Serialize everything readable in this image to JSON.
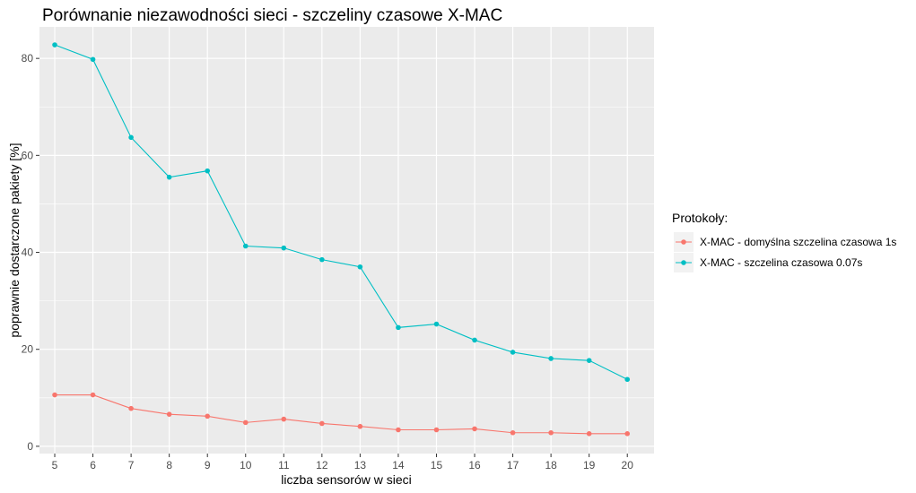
{
  "chart_data": {
    "type": "line",
    "title": "Porównanie niezawodności sieci - szczeliny czasowe X-MAC",
    "xlabel": "liczba sensorów w sieci",
    "ylabel": "poprawnie dostarczone pakiety [%]",
    "x": [
      5,
      6,
      7,
      8,
      9,
      10,
      11,
      12,
      13,
      14,
      15,
      16,
      17,
      18,
      19,
      20
    ],
    "xlim": [
      4.6,
      20.7
    ],
    "ylim": [
      -1.5,
      86.5
    ],
    "yticks": [
      0,
      20,
      40,
      60,
      80
    ],
    "grid": true,
    "legend": {
      "title": "Protokoły:",
      "position": "right"
    },
    "series": [
      {
        "name": "X-MAC - domyślna szczelina czasowa 1s",
        "color": "#F8766D",
        "values": [
          10.6,
          10.6,
          7.8,
          6.6,
          6.2,
          4.9,
          5.6,
          4.7,
          4.1,
          3.4,
          3.4,
          3.6,
          2.8,
          2.8,
          2.6,
          2.6
        ]
      },
      {
        "name": "X-MAC - szczelina czasowa 0.07s",
        "color": "#00BFC4",
        "values": [
          82.8,
          79.8,
          63.7,
          55.5,
          56.8,
          41.3,
          40.9,
          38.5,
          37.0,
          24.5,
          25.2,
          21.9,
          19.4,
          18.1,
          17.7,
          13.8
        ]
      }
    ]
  }
}
